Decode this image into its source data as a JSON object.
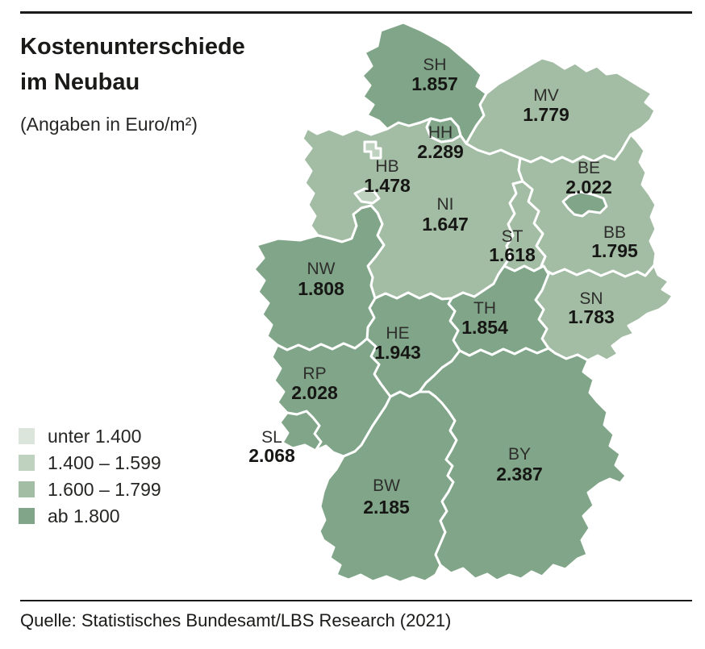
{
  "title": {
    "line1": "Kostenunterschiede",
    "line2": "im Neubau",
    "subtitle": "(Angaben in Euro/m²)"
  },
  "legend": {
    "items": [
      {
        "label": "unter 1.400",
        "color": "#dce5db"
      },
      {
        "label": "1.400 – 1.599",
        "color": "#bfd1bf"
      },
      {
        "label": "1.600 – 1.799",
        "color": "#a3bca4"
      },
      {
        "label": "ab 1.800",
        "color": "#80a588"
      }
    ]
  },
  "source": "Quelle: Statistisches Bundesamt/LBS Research (2021)",
  "chart_data": {
    "type": "choropleth",
    "title": "Kostenunterschiede im Neubau",
    "subtitle": "(Angaben in Euro/m²)",
    "unit": "Euro/m²",
    "legend_classes": [
      "unter 1.400",
      "1.400 – 1.599",
      "1.600 – 1.799",
      "ab 1.800"
    ],
    "states": [
      {
        "code": "SH",
        "value": "1.857",
        "value_numeric": 1857,
        "class": "ab 1.800"
      },
      {
        "code": "HH",
        "value": "2.289",
        "value_numeric": 2289,
        "class": "ab 1.800"
      },
      {
        "code": "MV",
        "value": "1.779",
        "value_numeric": 1779,
        "class": "1.600 – 1.799"
      },
      {
        "code": "HB",
        "value": "1.478",
        "value_numeric": 1478,
        "class": "1.400 – 1.599"
      },
      {
        "code": "NI",
        "value": "1.647",
        "value_numeric": 1647,
        "class": "1.600 – 1.799"
      },
      {
        "code": "BE",
        "value": "2.022",
        "value_numeric": 2022,
        "class": "ab 1.800"
      },
      {
        "code": "BB",
        "value": "1.795",
        "value_numeric": 1795,
        "class": "1.600 – 1.799"
      },
      {
        "code": "ST",
        "value": "1.618",
        "value_numeric": 1618,
        "class": "1.600 – 1.799"
      },
      {
        "code": "SN",
        "value": "1.783",
        "value_numeric": 1783,
        "class": "1.600 – 1.799"
      },
      {
        "code": "NW",
        "value": "1.808",
        "value_numeric": 1808,
        "class": "ab 1.800"
      },
      {
        "code": "TH",
        "value": "1.854",
        "value_numeric": 1854,
        "class": "ab 1.800"
      },
      {
        "code": "HE",
        "value": "1.943",
        "value_numeric": 1943,
        "class": "ab 1.800"
      },
      {
        "code": "RP",
        "value": "2.028",
        "value_numeric": 2028,
        "class": "ab 1.800"
      },
      {
        "code": "SL",
        "value": "2.068",
        "value_numeric": 2068,
        "class": "ab 1.800"
      },
      {
        "code": "BW",
        "value": "2.185",
        "value_numeric": 2185,
        "class": "ab 1.800"
      },
      {
        "code": "BY",
        "value": "2.387",
        "value_numeric": 2387,
        "class": "ab 1.800"
      }
    ]
  }
}
